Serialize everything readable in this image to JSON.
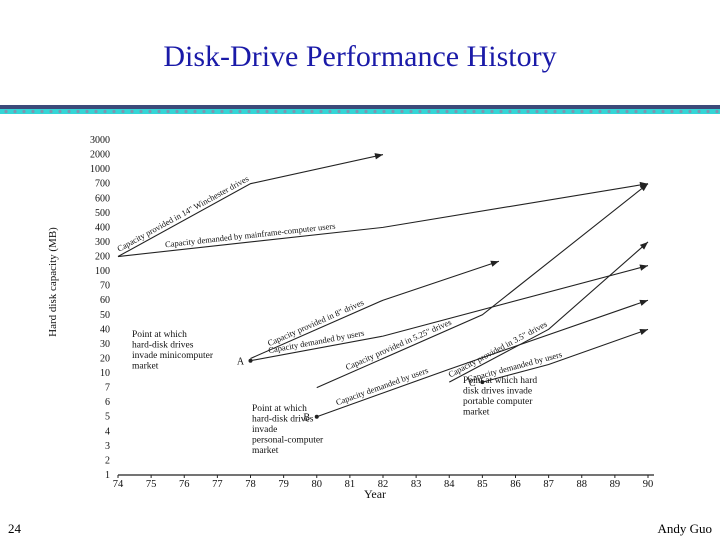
{
  "slide": {
    "title": "Disk-Drive Performance History",
    "number": "24",
    "author": "Andy Guo",
    "colors": {
      "title": "#1a1aa8",
      "bar_dark": "#3b4a7a",
      "bar_cyan": "#33d6d6",
      "dot": "#7f95b0"
    }
  },
  "chart_data": {
    "type": "line",
    "xlabel": "Year",
    "ylabel": "Hard disk capacity (MB)",
    "x_ticks": [
      "74",
      "75",
      "76",
      "77",
      "78",
      "79",
      "80",
      "81",
      "82",
      "83",
      "84",
      "85",
      "86",
      "87",
      "88",
      "89",
      "90"
    ],
    "y_ticks": [
      "1",
      "2",
      "3",
      "4",
      "5",
      "6",
      "7",
      "10",
      "20",
      "30",
      "40",
      "50",
      "60",
      "70",
      "100",
      "200",
      "300",
      "400",
      "500",
      "600",
      "700",
      "1000",
      "2000",
      "3000"
    ],
    "xlim": [
      74,
      90
    ],
    "ylim": [
      1,
      3000
    ],
    "series": [
      {
        "name": "Capacity provided in 14\" Winchester drives",
        "points": [
          [
            74,
            200
          ],
          [
            78,
            700
          ],
          [
            82,
            2000
          ]
        ]
      },
      {
        "name": "Capacity demanded by mainframe-computer users",
        "points": [
          [
            74,
            200
          ],
          [
            82,
            400
          ],
          [
            90,
            700
          ]
        ]
      },
      {
        "name": "Capacity provided in 8\" drives",
        "points": [
          [
            78,
            20
          ],
          [
            82,
            60
          ],
          [
            85.5,
            160
          ]
        ]
      },
      {
        "name": "Capacity demanded by users",
        "points": [
          [
            78,
            18
          ],
          [
            82,
            35
          ],
          [
            90,
            130
          ]
        ]
      },
      {
        "name": "Capacity provided in 5.25\" drives",
        "points": [
          [
            80,
            7
          ],
          [
            85,
            50
          ],
          [
            90,
            700
          ]
        ]
      },
      {
        "name": "Capacity demanded by users",
        "points": [
          [
            80,
            5
          ],
          [
            84,
            12
          ],
          [
            90,
            60
          ]
        ]
      },
      {
        "name": "Capacity provided in 3.5\" drives",
        "points": [
          [
            84,
            8
          ],
          [
            87,
            40
          ],
          [
            90,
            300
          ]
        ]
      },
      {
        "name": "Capacity demanded by users",
        "points": [
          [
            85,
            8
          ],
          [
            87,
            15
          ],
          [
            90,
            40
          ]
        ]
      }
    ],
    "annotations": [
      {
        "label": "A",
        "text": "Point at which hard-disk drives invade minicomputer market",
        "x": 78,
        "y": 18
      },
      {
        "label": "B",
        "text": "Point at which hard-disk drives invade personal-computer market",
        "x": 80,
        "y": 5
      },
      {
        "label": "C",
        "text": "Point at which hard disk drives invade portable computer market",
        "x": 85,
        "y": 8
      }
    ]
  }
}
